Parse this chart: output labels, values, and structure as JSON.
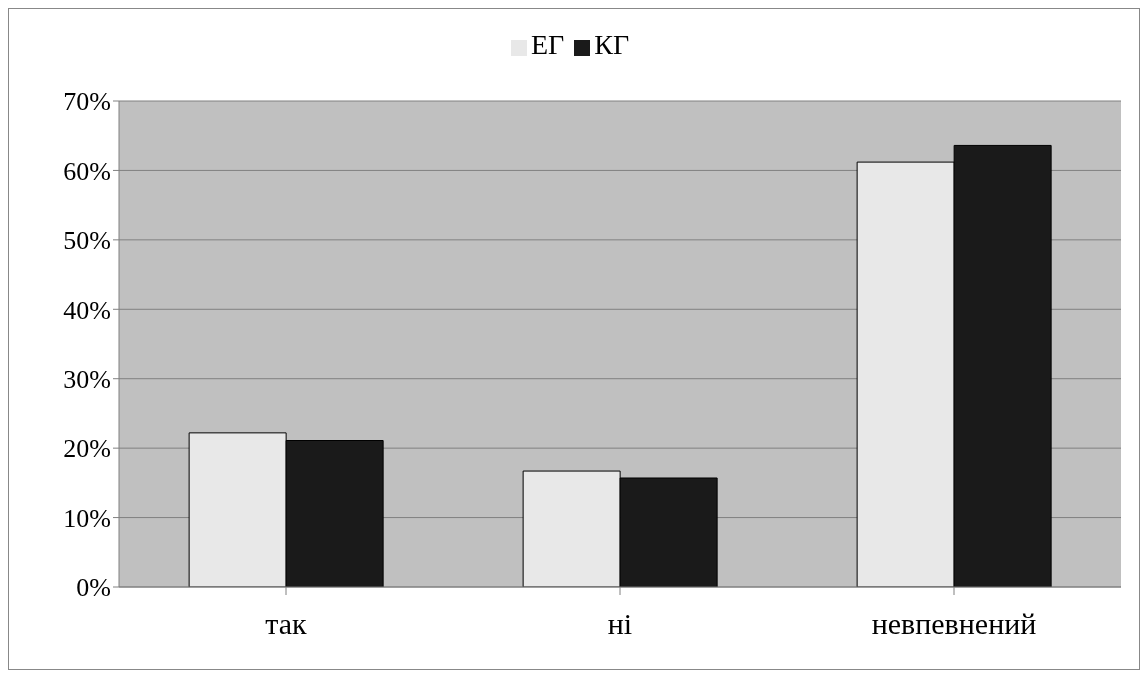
{
  "chart_data": {
    "type": "bar",
    "categories": [
      "так",
      "ні",
      "невпевнений"
    ],
    "series": [
      {
        "name": "ЕГ",
        "color": "#e8e8e8",
        "values": [
          22.2,
          16.7,
          61.2
        ]
      },
      {
        "name": "КГ",
        "color": "#1a1a1a",
        "values": [
          21.1,
          15.7,
          63.6
        ]
      }
    ],
    "ylim": [
      0,
      70
    ],
    "yticks": [
      {
        "value": 0,
        "label": "0%"
      },
      {
        "value": 10,
        "label": "10%"
      },
      {
        "value": 20,
        "label": "20%"
      },
      {
        "value": 30,
        "label": "30%"
      },
      {
        "value": 40,
        "label": "40%"
      },
      {
        "value": 50,
        "label": "50%"
      },
      {
        "value": 60,
        "label": "60%"
      },
      {
        "value": 70,
        "label": "70%"
      }
    ],
    "grid": "y",
    "legend": "top"
  }
}
